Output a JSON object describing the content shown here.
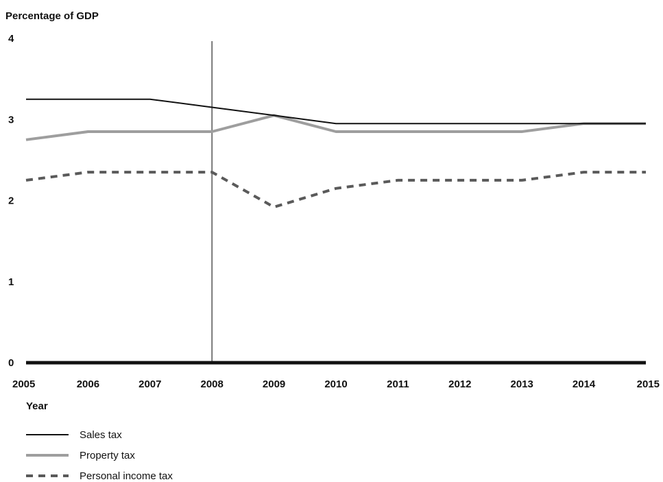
{
  "chart_data": {
    "type": "line",
    "title": "",
    "ylabel": "Percentage of GDP",
    "xlabel": "Year",
    "x": [
      "2005",
      "2006",
      "2007",
      "2008",
      "2009",
      "2010",
      "2011",
      "2012",
      "2013",
      "2014",
      "2015"
    ],
    "xlim": [
      2005,
      2015
    ],
    "ylim": [
      0,
      4
    ],
    "yticks": [
      "0",
      "1",
      "2",
      "3",
      "4"
    ],
    "grid": false,
    "legend_position": "bottom-left",
    "annotations": [
      {
        "type": "vertical-line",
        "x": "2008"
      }
    ],
    "series": [
      {
        "name": "Sales tax",
        "style": "solid-thin",
        "color": "#111111",
        "values": [
          3.25,
          3.25,
          3.25,
          3.15,
          3.05,
          2.95,
          2.95,
          2.95,
          2.95,
          2.95,
          2.95
        ]
      },
      {
        "name": "Property tax",
        "style": "solid-thick",
        "color": "#9e9e9e",
        "values": [
          2.75,
          2.85,
          2.85,
          2.85,
          3.05,
          2.85,
          2.85,
          2.85,
          2.85,
          2.95,
          2.95
        ]
      },
      {
        "name": "Personal income tax",
        "style": "dashed",
        "color": "#5a5a5a",
        "values": [
          2.25,
          2.35,
          2.35,
          2.35,
          1.92,
          2.15,
          2.25,
          2.25,
          2.25,
          2.35,
          2.35
        ]
      }
    ]
  }
}
